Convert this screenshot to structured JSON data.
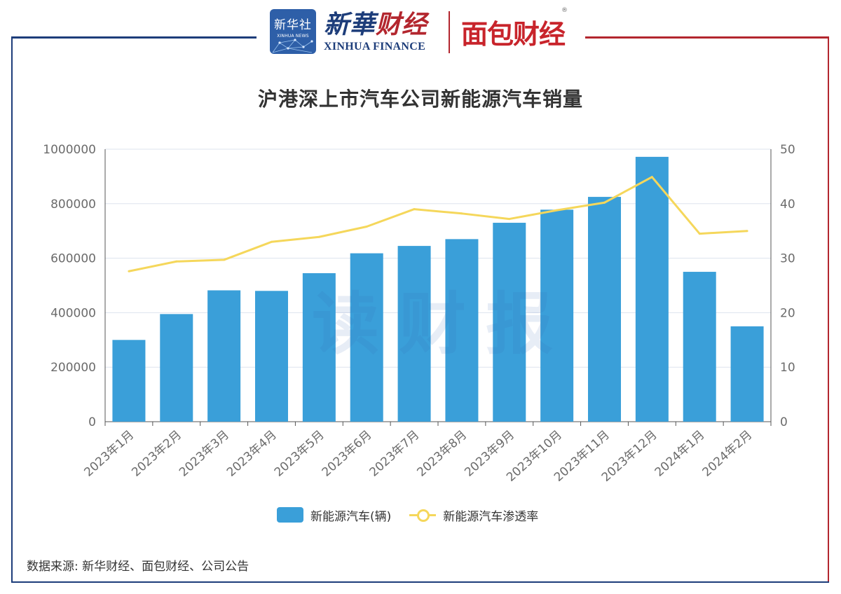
{
  "header": {
    "xinhua_badge_cn": "新华社",
    "xinhua_badge_en": "XINHUA NEWS",
    "xinhua_finance_cn_1": "新華",
    "xinhua_finance_cn_2": "财经",
    "xinhua_finance_en": "XINHUA FINANCE",
    "mianbao_caijing": "面包财经",
    "registered_mark": "®"
  },
  "watermark": "读财报",
  "source": "数据来源: 新华财经、面包财经、公司公告",
  "colors": {
    "bar": "#3a9fd9",
    "line": "#f5d75b",
    "frame_blue": "#1d3d7a",
    "frame_red": "#b3262e"
  },
  "chart_data": {
    "type": "bar",
    "title": "沪港深上市汽车公司新能源汽车销量",
    "categories": [
      "2023年1月",
      "2023年2月",
      "2023年3月",
      "2023年4月",
      "2023年5月",
      "2023年6月",
      "2023年7月",
      "2023年8月",
      "2023年9月",
      "2023年10月",
      "2023年11月",
      "2023年12月",
      "2024年1月",
      "2024年2月"
    ],
    "series": [
      {
        "name": "新能源汽车(辆)",
        "type": "bar",
        "axis": "left",
        "values": [
          300000,
          395000,
          482000,
          480000,
          545000,
          618000,
          645000,
          670000,
          730000,
          778000,
          825000,
          972000,
          550000,
          350000
        ]
      },
      {
        "name": "新能源汽车渗透率",
        "type": "line",
        "axis": "right",
        "values": [
          27.6,
          29.4,
          29.7,
          33.0,
          33.9,
          35.8,
          39.0,
          38.2,
          37.2,
          38.8,
          40.2,
          44.9,
          34.5,
          35.0
        ]
      }
    ],
    "y_left": {
      "range": [
        0,
        1000000
      ],
      "ticks": [
        "0",
        "200000",
        "400000",
        "600000",
        "800000",
        "1000000"
      ]
    },
    "y_right": {
      "range": [
        0,
        50
      ],
      "ticks": [
        "0",
        "10",
        "20",
        "30",
        "40",
        "50"
      ]
    },
    "grid": true,
    "legend_position": "bottom-center"
  }
}
